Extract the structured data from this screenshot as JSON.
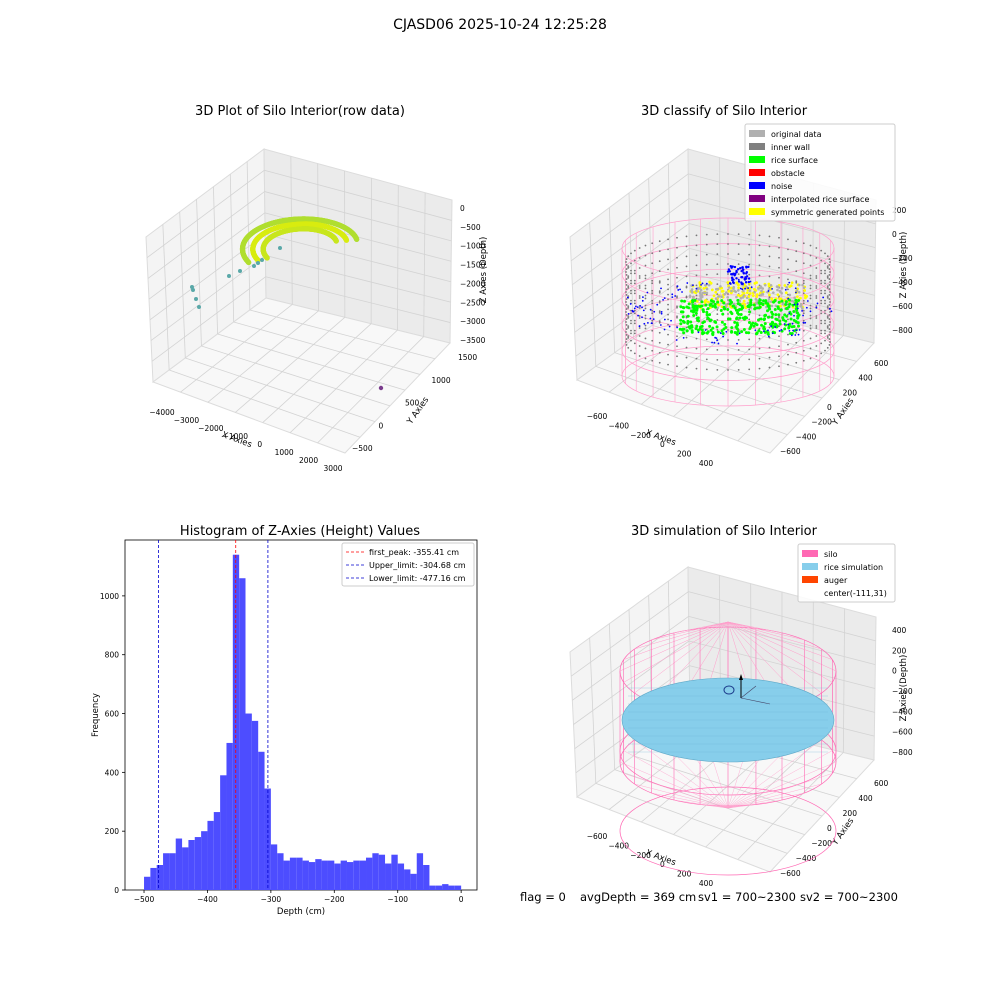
{
  "suptitle": "CJASD06 2025-10-24 12:25:28",
  "panel1": {
    "title": "3D Plot of Silo Interior(row data)",
    "xlabel": "X Axies",
    "ylabel": "Y Axies",
    "zlabel": "Z Axies (Depth)",
    "xticks": [
      "−4000",
      "−3000",
      "−2000",
      "−1000",
      "0",
      "1000",
      "2000",
      "3000"
    ],
    "yticks": [
      "−500",
      "0",
      "500",
      "1000",
      "1500"
    ],
    "zticks": [
      "0",
      "−500",
      "−1000",
      "−1500",
      "−2000",
      "−2500",
      "−3000",
      "−3500"
    ]
  },
  "panel2": {
    "title": "3D classify of Silo Interior",
    "xlabel": "X Axies",
    "ylabel": "Y Axies",
    "zlabel": "Z Axies (Depth)",
    "xticks": [
      "−600",
      "−400",
      "−200",
      "0",
      "200",
      "400"
    ],
    "yticks": [
      "−600",
      "−400",
      "−200",
      "0",
      "200",
      "400",
      "600"
    ],
    "zticks": [
      "200",
      "0",
      "−200",
      "−400",
      "−600",
      "−800"
    ],
    "legend": [
      {
        "label": "original data",
        "color": "#b0b0b0"
      },
      {
        "label": "inner wall",
        "color": "#808080"
      },
      {
        "label": "rice surface",
        "color": "#00ff00"
      },
      {
        "label": "obstacle",
        "color": "#ff0000"
      },
      {
        "label": "noise",
        "color": "#0000ff"
      },
      {
        "label": "interpolated rice surface",
        "color": "#800080"
      },
      {
        "label": "symmetric generated points",
        "color": "#ffff00"
      }
    ]
  },
  "panel3": {
    "title": "3D simulation of Silo Interior",
    "xlabel": "X Axies",
    "ylabel": "Y Axies",
    "zlabel": "Z Axies (Depth)",
    "xticks": [
      "−600",
      "−400",
      "−200",
      "0",
      "200",
      "400"
    ],
    "yticks": [
      "−600",
      "−400",
      "−200",
      "0",
      "200",
      "400",
      "600"
    ],
    "zticks": [
      "400",
      "200",
      "0",
      "−200",
      "−400",
      "−600",
      "−800"
    ],
    "legend": [
      {
        "label": "silo",
        "color": "#ff69b4"
      },
      {
        "label": "rice simulation",
        "color": "#87ceeb"
      },
      {
        "label": "auger",
        "color": "#ff4500"
      },
      {
        "label": "center(-111,31)",
        "color": ""
      }
    ]
  },
  "chart_data": {
    "type": "bar",
    "title": "Histogram of Z-Axies (Height) Values",
    "xlabel": "Depth (cm)",
    "ylabel": "Frequency",
    "xlim": [
      -530,
      25
    ],
    "ylim": [
      0,
      1190
    ],
    "xticks": [
      "−500",
      "−400",
      "−300",
      "−200",
      "−100",
      "0"
    ],
    "yticks": [
      "0",
      "200",
      "400",
      "600",
      "800",
      "1000"
    ],
    "bin_width": 10,
    "bin_start": -500,
    "values": [
      45,
      75,
      85,
      125,
      125,
      175,
      145,
      170,
      180,
      200,
      235,
      265,
      390,
      500,
      1140,
      1060,
      600,
      575,
      470,
      345,
      155,
      125,
      100,
      110,
      110,
      100,
      95,
      105,
      100,
      100,
      90,
      100,
      95,
      100,
      100,
      110,
      125,
      120,
      90,
      120,
      90,
      70,
      55,
      125,
      85,
      15,
      15,
      20,
      15,
      15
    ],
    "bar_color": "#4d4dff",
    "lines": [
      {
        "x": -355.41,
        "color": "#ff0000",
        "label": "first_peak: -355.41 cm"
      },
      {
        "x": -304.68,
        "color": "#0000cc",
        "label": "Upper_limit: -304.68 cm"
      },
      {
        "x": -477.16,
        "color": "#0000cc",
        "label": "Lower_limit: -477.16 cm"
      }
    ]
  },
  "status": {
    "flag": "flag = 0",
    "avg": "avgDepth = 369 cm",
    "sv1": "sv1 = 700~2300",
    "sv2": "sv2 = 700~2300"
  }
}
